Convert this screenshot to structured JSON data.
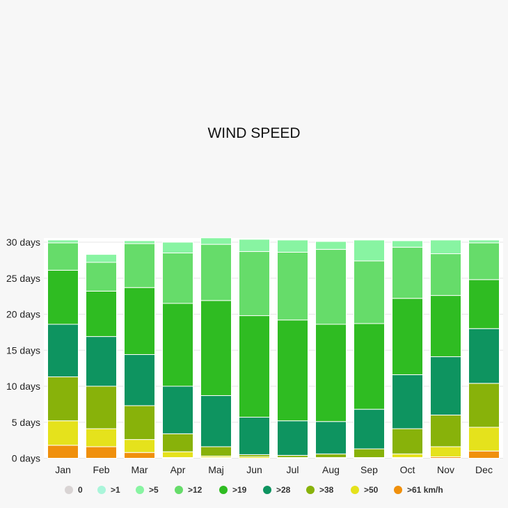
{
  "chart_data": {
    "type": "bar",
    "stacked": true,
    "title": "WIND SPEED",
    "categories": [
      "Jan",
      "Feb",
      "Mar",
      "Apr",
      "Maj",
      "Jun",
      "Jul",
      "Aug",
      "Sep",
      "Oct",
      "Nov",
      "Dec"
    ],
    "y_ticks": [
      "0 days",
      "5 days",
      "10 days",
      "15 days",
      "20 days",
      "25 days",
      "30 days"
    ],
    "ylim": [
      0,
      30.5
    ],
    "grid": true,
    "legend_position": "bottom",
    "series": [
      {
        "name": "0",
        "color": "#d9d4d4",
        "values": [
          0,
          0,
          0,
          0,
          0,
          0,
          0,
          0,
          0,
          0,
          0,
          0
        ]
      },
      {
        "name": ">1",
        "color": "#aaf5da",
        "values": [
          0,
          0,
          0,
          0,
          0,
          0,
          0,
          0,
          0,
          0,
          0,
          0
        ]
      },
      {
        "name": ">5",
        "color": "#88f4a2",
        "values": [
          0.4,
          1.1,
          0.4,
          1.5,
          0.9,
          1.7,
          1.7,
          1.1,
          2.9,
          0.9,
          1.9,
          0.4
        ]
      },
      {
        "name": ">12",
        "color": "#66dc6a",
        "values": [
          3.8,
          4.0,
          6.1,
          7.0,
          7.8,
          8.9,
          9.4,
          10.4,
          8.7,
          7.1,
          5.8,
          5.1
        ]
      },
      {
        "name": ">19",
        "color": "#2fbc22",
        "values": [
          7.5,
          6.3,
          9.3,
          11.5,
          13.2,
          14.1,
          14.0,
          13.5,
          11.9,
          10.6,
          8.5,
          6.8
        ]
      },
      {
        "name": ">28",
        "color": "#0e9460",
        "values": [
          7.3,
          6.9,
          7.1,
          6.6,
          7.1,
          5.2,
          4.8,
          4.5,
          5.5,
          7.5,
          8.1,
          7.6
        ]
      },
      {
        "name": ">38",
        "color": "#88b20a",
        "values": [
          6.1,
          5.9,
          4.7,
          2.5,
          1.3,
          0.3,
          0.3,
          0.5,
          1.2,
          3.5,
          4.4,
          6.1
        ]
      },
      {
        "name": ">50",
        "color": "#e5e21c",
        "values": [
          3.4,
          2.5,
          1.8,
          0.8,
          0.2,
          0.2,
          0.1,
          0.1,
          0.1,
          0.5,
          1.4,
          3.3
        ]
      },
      {
        "name": ">61 km/h",
        "color": "#f0900c",
        "values": [
          1.8,
          1.6,
          0.8,
          0.1,
          0.1,
          0,
          0,
          0,
          0,
          0.1,
          0.2,
          1.0
        ]
      }
    ]
  }
}
